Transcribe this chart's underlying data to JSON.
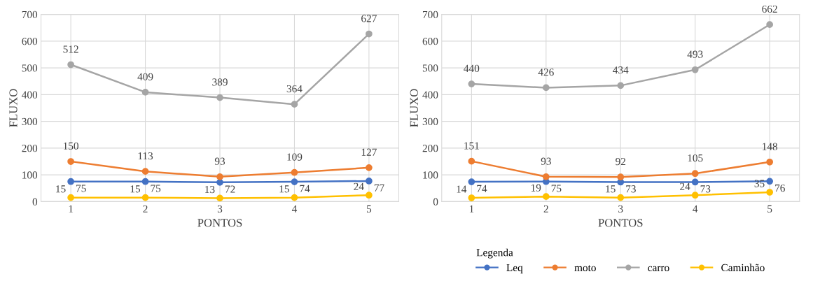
{
  "chart_data": [
    {
      "type": "line",
      "xlabel": "PONTOS",
      "ylabel": "FLUXO",
      "categories": [
        "1",
        "2",
        "3",
        "4",
        "5"
      ],
      "ylim": [
        0,
        700
      ],
      "yticks": [
        0,
        100,
        200,
        300,
        400,
        500,
        600,
        700
      ],
      "grid": true,
      "marker": "circle",
      "data_labels": true,
      "legend": "bottom",
      "series": [
        {
          "name": "Leq",
          "color": "#4472c4",
          "values": [
            75,
            75,
            72,
            74,
            77
          ]
        },
        {
          "name": "moto",
          "color": "#ed7d31",
          "values": [
            150,
            113,
            93,
            109,
            127
          ]
        },
        {
          "name": "carro",
          "color": "#a5a5a5",
          "values": [
            512,
            409,
            389,
            364,
            627
          ]
        },
        {
          "name": "Caminhão",
          "color": "#ffc000",
          "values": [
            15,
            15,
            13,
            15,
            24
          ]
        }
      ]
    },
    {
      "type": "line",
      "xlabel": "PONTOS",
      "ylabel": "FLUXO",
      "categories": [
        "1",
        "2",
        "3",
        "4",
        "5"
      ],
      "ylim": [
        0,
        700
      ],
      "yticks": [
        0,
        100,
        200,
        300,
        400,
        500,
        600,
        700
      ],
      "grid": true,
      "marker": "circle",
      "data_labels": true,
      "legend": "bottom",
      "legend_title": "Legenda",
      "series": [
        {
          "name": "Leq",
          "color": "#4472c4",
          "values": [
            74,
            75,
            73,
            73,
            76
          ]
        },
        {
          "name": "moto",
          "color": "#ed7d31",
          "values": [
            151,
            93,
            92,
            105,
            148
          ]
        },
        {
          "name": "carro",
          "color": "#a5a5a5",
          "values": [
            440,
            426,
            434,
            493,
            662
          ]
        },
        {
          "name": "Caminhão",
          "color": "#ffc000",
          "values": [
            14,
            19,
            15,
            24,
            35
          ]
        }
      ]
    }
  ]
}
